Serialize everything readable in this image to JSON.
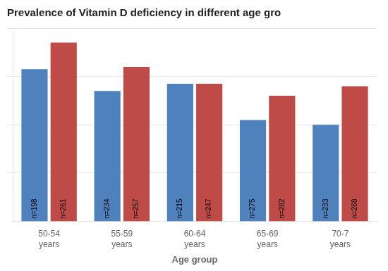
{
  "chart_data": {
    "type": "bar",
    "title": "Prevalence of Vitamin D deficiency in different age gro",
    "xlabel": "Age group",
    "categories": [
      "50-54\nyears",
      "55-59\nyears",
      "60-64\nyears",
      "65-69\nyears",
      "70-7\nyears"
    ],
    "series": [
      {
        "color": "#4F81BD",
        "values": [
          63,
          54,
          57,
          42,
          40
        ],
        "labels": [
          "n=198",
          "n=234",
          "n=215",
          "n=275",
          "n=233"
        ]
      },
      {
        "color": "#BE4B48",
        "values": [
          74,
          64,
          57,
          52,
          56
        ],
        "labels": [
          "n=261",
          "n=257",
          "n=247",
          "n=282",
          "n=268"
        ]
      }
    ],
    "ylim": [
      0,
      80
    ],
    "yticks": [
      20,
      40,
      60,
      80
    ],
    "grid": true,
    "tick_labels": "x"
  }
}
